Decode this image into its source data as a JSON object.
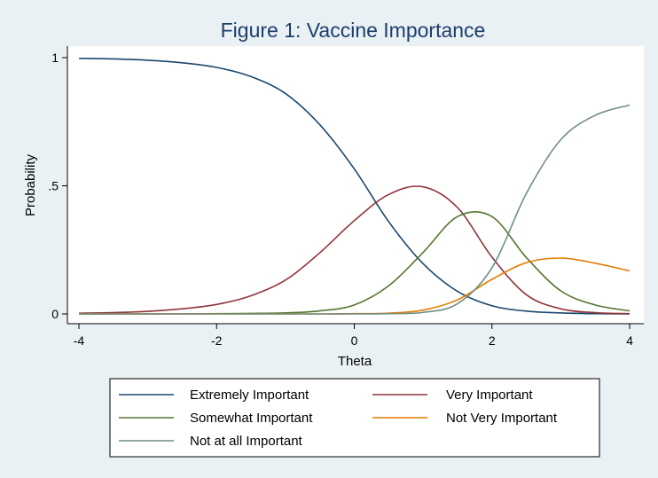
{
  "chart_data": {
    "type": "line",
    "title": "Figure 1: Vaccine Importance",
    "xlabel": "Theta",
    "ylabel": "Probability",
    "xlim": [
      -4,
      4
    ],
    "ylim": [
      0,
      1
    ],
    "x_ticks": [
      -4,
      -2,
      0,
      2,
      4
    ],
    "x_tick_labels": [
      "-4",
      "-2",
      "0",
      "2",
      "4"
    ],
    "y_ticks": [
      0,
      0.5,
      1
    ],
    "y_tick_labels": [
      "0",
      ".5",
      "1"
    ],
    "grid": true,
    "legend_position": "bottom",
    "x": [
      -4,
      -3.5,
      -3,
      -2.5,
      -2,
      -1.5,
      -1,
      -0.5,
      0,
      0.5,
      1,
      1.5,
      2,
      2.5,
      3,
      3.5,
      4
    ],
    "series": [
      {
        "name": "Extremely Important",
        "color": "#1a476f",
        "values": [
          0.997,
          0.995,
          0.99,
          0.98,
          0.962,
          0.926,
          0.86,
          0.738,
          0.566,
          0.36,
          0.196,
          0.088,
          0.032,
          0.011,
          0.004,
          0.001,
          0.0
        ]
      },
      {
        "name": "Very Important",
        "color": "#90353b",
        "values": [
          0.003,
          0.005,
          0.01,
          0.02,
          0.037,
          0.071,
          0.132,
          0.239,
          0.364,
          0.466,
          0.496,
          0.415,
          0.222,
          0.075,
          0.02,
          0.005,
          0.001
        ]
      },
      {
        "name": "Somewhat Important",
        "color": "#55752f",
        "values": [
          0.0,
          0.0,
          0.0,
          0.0,
          0.001,
          0.002,
          0.004,
          0.012,
          0.035,
          0.11,
          0.24,
          0.38,
          0.38,
          0.22,
          0.09,
          0.035,
          0.012
        ]
      },
      {
        "name": "Not Very Important",
        "color": "#e37e00",
        "values": [
          0.0,
          0.0,
          0.0,
          0.0,
          0.0,
          0.0,
          0.0,
          0.0,
          0.001,
          0.003,
          0.015,
          0.055,
          0.135,
          0.2,
          0.218,
          0.198,
          0.168
        ]
      },
      {
        "name": "Not at all Important",
        "color": "#6e8e84",
        "values": [
          0.0,
          0.0,
          0.0,
          0.0,
          0.0,
          0.0,
          0.0,
          0.0,
          0.0,
          0.001,
          0.006,
          0.04,
          0.18,
          0.47,
          0.68,
          0.775,
          0.815
        ]
      }
    ]
  }
}
